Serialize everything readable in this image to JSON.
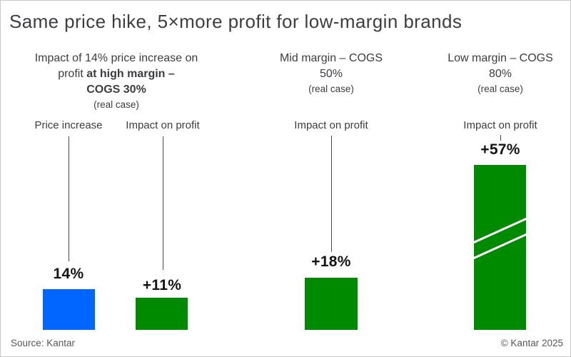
{
  "chart_data": {
    "type": "bar",
    "title": "Same price hike, 5×more profit for low-margin brands",
    "unit": "percent",
    "ylim": [
      0,
      60
    ],
    "grid": false,
    "legend": "none",
    "groups": [
      {
        "header": {
          "line1": "Impact of 14% price increase on",
          "line2_regular": "profit ",
          "line2_bold": "at high margin –",
          "line3_bold": "COGS 30%",
          "note": "(real case)"
        },
        "bars": [
          {
            "label": "Price increase",
            "value": 14,
            "value_label": "14%",
            "color": "blue"
          },
          {
            "label": "Impact on profit",
            "value": 11,
            "value_label": "+11%",
            "color": "green"
          }
        ]
      },
      {
        "header": {
          "line1": "Mid margin – COGS",
          "line2": "50%",
          "note": "(real case)"
        },
        "bars": [
          {
            "label": "Impact on profit",
            "value": 18,
            "value_label": "+18%",
            "color": "green"
          }
        ]
      },
      {
        "header": {
          "line1": "Low margin – COGS",
          "line2": "80%",
          "note": "(real case)"
        },
        "bars": [
          {
            "label": "Impact on profit",
            "value": 57,
            "value_label": "+57%",
            "color": "green",
            "axis_break_marks": true
          }
        ]
      }
    ]
  },
  "colors": {
    "blue": "#0066ff",
    "green": "#008a00"
  },
  "footer": {
    "source": "Source: Kantar",
    "copyright": "© Kantar 2025"
  }
}
